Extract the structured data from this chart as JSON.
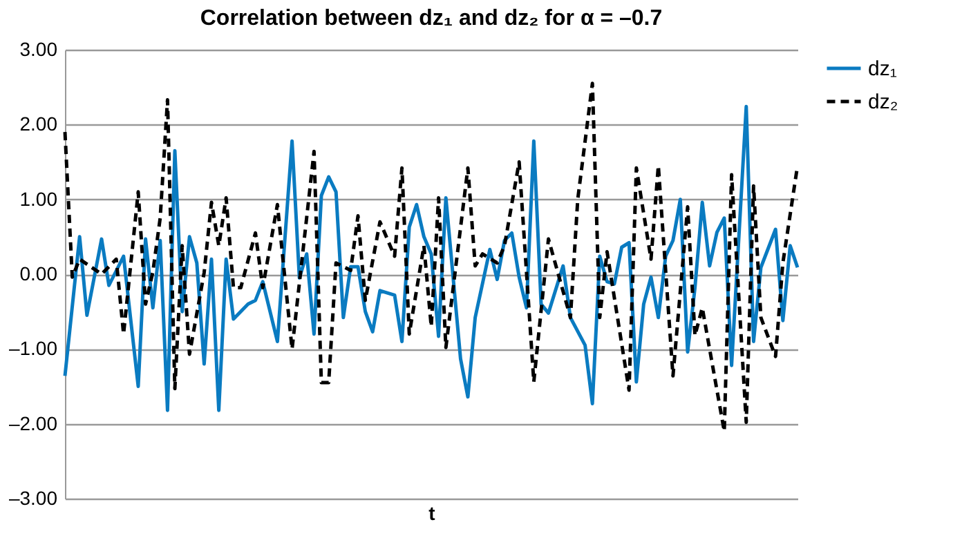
{
  "chart_data": {
    "type": "line",
    "title": "Correlation between dz₁ and dz₂ for α = –0.7",
    "xlabel": "t",
    "categories": [
      null,
      null,
      null,
      null,
      null,
      null,
      null,
      null,
      null,
      null,
      null,
      null,
      null,
      null,
      null,
      null,
      null,
      null,
      null,
      null,
      null,
      null,
      null,
      null,
      null,
      null,
      null,
      null,
      null,
      null,
      null,
      null,
      null,
      null,
      null,
      null,
      null,
      null,
      null,
      null,
      null,
      null,
      null,
      null,
      null,
      null,
      null,
      null,
      null,
      null,
      null,
      null,
      null,
      null,
      null,
      null,
      null,
      null,
      null,
      null,
      null,
      null,
      null,
      null,
      null,
      null,
      null,
      null,
      null,
      null,
      null,
      null,
      null,
      null,
      null,
      null,
      null,
      null,
      null,
      null,
      null,
      null,
      null,
      null,
      null,
      null,
      null,
      null,
      null,
      null,
      null,
      null,
      null,
      null,
      null,
      null,
      null,
      null,
      null,
      null,
      null
    ],
    "ylim": [
      -3,
      3
    ],
    "yticks": [
      {
        "value": 3,
        "label": "3.00"
      },
      {
        "value": 2,
        "label": "2.00"
      },
      {
        "value": 1,
        "label": "1.00"
      },
      {
        "value": 0,
        "label": "0.00"
      },
      {
        "value": -1,
        "label": "–1.00"
      },
      {
        "value": -2,
        "label": "–2.00"
      },
      {
        "value": -3,
        "label": "–3.00"
      }
    ],
    "tick_labels": "y",
    "grid": "y",
    "legend": "right",
    "series": [
      {
        "name": "dz₁",
        "color": "#0a7bc1",
        "line_style": "solid",
        "values": [
          -1.36,
          null,
          0.5,
          -0.55,
          null,
          0.47,
          -0.15,
          null,
          0.24,
          null,
          -1.5,
          0.47,
          -0.45,
          0.45,
          -1.82,
          1.65,
          -0.5,
          0.5,
          0.15,
          -1.2,
          0.2,
          -1.82,
          0.2,
          -0.6,
          null,
          -0.4,
          -0.35,
          -0.1,
          null,
          -0.9,
          null,
          1.78,
          -0.05,
          0.27,
          -0.8,
          1.05,
          1.3,
          1.1,
          -0.58,
          0.1,
          0.1,
          -0.5,
          -0.77,
          -0.22,
          null,
          -0.28,
          -0.9,
          0.63,
          0.93,
          0.5,
          0.27,
          -0.83,
          1.02,
          null,
          -1.13,
          -1.64,
          -0.58,
          null,
          0.33,
          -0.07,
          0.45,
          0.55,
          -0.04,
          -0.45,
          1.78,
          -0.4,
          -0.52,
          null,
          0.11,
          -0.58,
          null,
          -0.95,
          -1.73,
          0.24,
          -0.1,
          -0.13,
          0.36,
          0.42,
          -1.44,
          -0.4,
          -0.04,
          -0.58,
          0.24,
          0.45,
          1.0,
          -1.04,
          -0.18,
          0.96,
          0.11,
          0.56,
          0.75,
          -1.22,
          null,
          2.24,
          -0.9,
          0.09,
          null,
          0.6,
          -0.62,
          0.38,
          0.09
        ]
      },
      {
        "name": "dz₂",
        "color": "#000000",
        "line_style": "dashed",
        "values": [
          1.9,
          -0.04,
          0.2,
          null,
          null,
          0.0,
          null,
          0.2,
          -0.8,
          null,
          1.1,
          -0.4,
          0.03,
          0.75,
          2.33,
          -1.53,
          0.38,
          -1.07,
          null,
          0.02,
          0.96,
          0.38,
          1.02,
          -0.18,
          -0.18,
          null,
          0.55,
          -0.18,
          null,
          0.93,
          null,
          -1.0,
          null,
          null,
          1.64,
          -1.45,
          -1.45,
          0.15,
          null,
          0.05,
          0.78,
          -0.35,
          null,
          0.7,
          null,
          0.24,
          1.42,
          -0.8,
          null,
          0.38,
          -0.7,
          1.02,
          -0.98,
          null,
          null,
          1.42,
          0.11,
          0.27,
          null,
          0.15,
          0.38,
          null,
          1.5,
          null,
          -1.44,
          null,
          0.47,
          null,
          null,
          -0.58,
          1.0,
          null,
          2.55,
          -0.58,
          0.3,
          null,
          null,
          -1.55,
          1.42,
          null,
          0.2,
          1.45,
          null,
          -1.36,
          null,
          0.9,
          -0.82,
          -0.45,
          null,
          null,
          -2.1,
          1.33,
          null,
          -1.98,
          1.18,
          -0.58,
          null,
          -1.1,
          0.15,
          null,
          1.45
        ]
      }
    ]
  }
}
